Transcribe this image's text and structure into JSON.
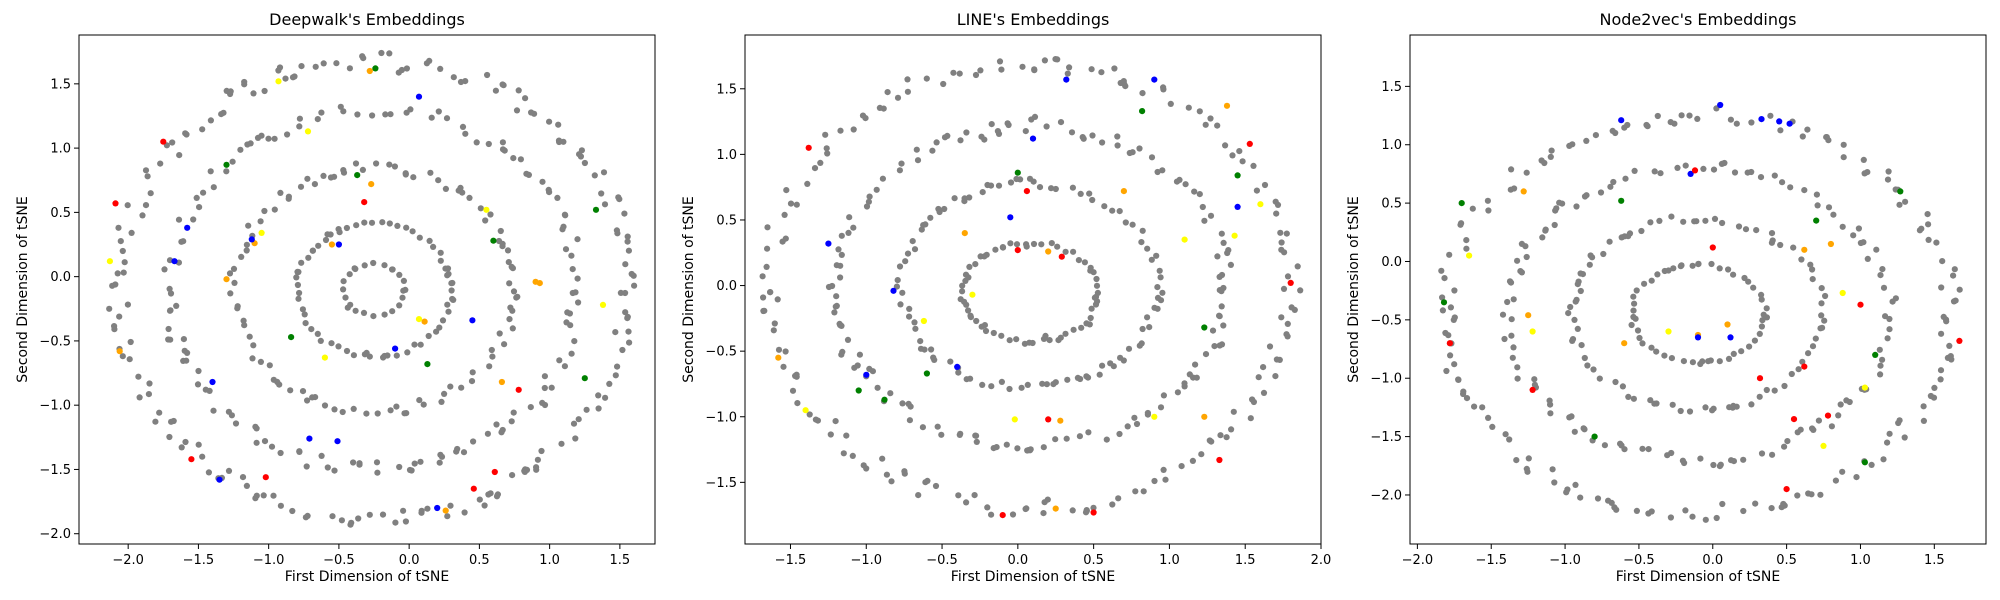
{
  "chart_data": [
    {
      "type": "scatter",
      "title": "Deepwalk's Embeddings",
      "xlabel": "First Dimension of tSNE",
      "ylabel": "Second Dimension of tSNE",
      "xlim": [
        -2.35,
        1.75
      ],
      "ylim": [
        -2.08,
        1.88
      ],
      "xticks": [
        -2.0,
        -1.5,
        -1.0,
        -0.5,
        0.0,
        0.5,
        1.0,
        1.5
      ],
      "xtick_labels": [
        "−2.0",
        "−1.5",
        "−1.0",
        "−0.5",
        "0.0",
        "0.5",
        "1.0",
        "1.5"
      ],
      "yticks": [
        -2.0,
        -1.5,
        -1.0,
        -0.5,
        0.0,
        0.5,
        1.0,
        1.5
      ],
      "ytick_labels": [
        "−2.0",
        "−1.5",
        "−1.0",
        "−0.5",
        "0.0",
        "0.5",
        "1.0",
        "1.5"
      ],
      "grid": false,
      "rings": [
        {
          "cx": -0.25,
          "cy": -0.1,
          "rx": 1.82,
          "ry": 1.78,
          "n": 150,
          "seed": 11
        },
        {
          "cx": -0.25,
          "cy": -0.1,
          "rx": 1.45,
          "ry": 1.4,
          "n": 115,
          "seed": 12
        },
        {
          "cx": -0.25,
          "cy": -0.1,
          "rx": 1.0,
          "ry": 0.95,
          "n": 85,
          "seed": 13
        },
        {
          "cx": -0.25,
          "cy": -0.1,
          "rx": 0.55,
          "ry": 0.52,
          "n": 55,
          "seed": 14
        },
        {
          "cx": -0.25,
          "cy": -0.1,
          "rx": 0.22,
          "ry": 0.2,
          "n": 20,
          "seed": 15
        }
      ],
      "series": [
        {
          "color": "#ffa500",
          "x": [
            -0.28,
            -0.55,
            0.93,
            -2.06,
            0.11,
            -1.1,
            0.66,
            0.26,
            -0.27,
            -1.3,
            0.9
          ],
          "y": [
            1.6,
            0.25,
            -0.05,
            -0.58,
            -0.35,
            0.26,
            -0.82,
            -1.82,
            0.72,
            -0.02,
            -0.04
          ]
        },
        {
          "color": "#ffff00",
          "x": [
            -0.72,
            0.07,
            1.38,
            -2.13,
            -0.93,
            -1.05,
            0.55,
            -0.6
          ],
          "y": [
            1.13,
            -0.33,
            -0.22,
            0.12,
            1.52,
            0.34,
            0.52,
            -0.63
          ]
        },
        {
          "color": "#0000ff",
          "x": [
            0.07,
            -0.5,
            -1.12,
            -1.67,
            -0.71,
            -0.51,
            0.2,
            0.45,
            -1.35,
            -0.1,
            -1.4,
            -1.58
          ],
          "y": [
            1.4,
            0.25,
            0.29,
            0.12,
            -1.26,
            -1.28,
            -1.8,
            -0.34,
            -1.58,
            -0.56,
            -0.82,
            0.38
          ]
        },
        {
          "color": "#ff0000",
          "x": [
            -1.75,
            0.46,
            -1.02,
            -2.09,
            0.78,
            -1.55,
            -0.32,
            0.61
          ],
          "y": [
            1.05,
            -1.65,
            -1.56,
            0.57,
            -0.88,
            -1.42,
            0.58,
            -1.52
          ]
        },
        {
          "color": "#008000",
          "x": [
            -0.24,
            -0.37,
            1.33,
            1.25,
            0.13,
            -0.84,
            0.6,
            -1.3
          ],
          "y": [
            1.62,
            0.79,
            0.52,
            -0.79,
            -0.68,
            -0.47,
            0.28,
            0.87
          ]
        }
      ]
    },
    {
      "type": "scatter",
      "title": "LINE's Embeddings",
      "xlabel": "First Dimension of tSNE",
      "ylabel": "Second Dimension of tSNE",
      "xlim": [
        -1.8,
        2.0
      ],
      "ylim": [
        -1.97,
        1.91
      ],
      "xticks": [
        -1.5,
        -1.0,
        -0.5,
        0.0,
        0.5,
        1.0,
        1.5,
        2.0
      ],
      "xtick_labels": [
        "−1.5",
        "−1.0",
        "−0.5",
        "0.0",
        "0.5",
        "1.0",
        "1.5",
        "2.0"
      ],
      "yticks": [
        -1.5,
        -1.0,
        -0.5,
        0.0,
        0.5,
        1.0,
        1.5
      ],
      "ytick_labels": [
        "−1.5",
        "−1.0",
        "−0.5",
        "0.0",
        "0.5",
        "1.0",
        "1.5"
      ],
      "grid": false,
      "rings": [
        {
          "cx": 0.08,
          "cy": 0.0,
          "rx": 1.72,
          "ry": 1.7,
          "n": 140,
          "seed": 21
        },
        {
          "cx": 0.08,
          "cy": 0.0,
          "rx": 1.3,
          "ry": 1.22,
          "n": 110,
          "seed": 22
        },
        {
          "cx": 0.08,
          "cy": 0.0,
          "rx": 0.85,
          "ry": 0.78,
          "n": 80,
          "seed": 23
        },
        {
          "cx": 0.08,
          "cy": -0.05,
          "rx": 0.45,
          "ry": 0.38,
          "n": 50,
          "seed": 24
        }
      ],
      "series": [
        {
          "color": "#ffa500",
          "x": [
            0.25,
            0.28,
            -0.35,
            0.7,
            1.38,
            0.2,
            1.23,
            -1.58
          ],
          "y": [
            -1.7,
            -1.03,
            0.4,
            0.72,
            1.37,
            0.26,
            -1.0,
            -0.55
          ]
        },
        {
          "color": "#ffff00",
          "x": [
            1.6,
            1.43,
            1.1,
            -0.02,
            -1.4,
            0.9,
            -0.3,
            -0.62
          ],
          "y": [
            0.62,
            0.38,
            0.35,
            -1.02,
            -0.95,
            -1.0,
            -0.07,
            -0.27
          ]
        },
        {
          "color": "#0000ff",
          "x": [
            0.32,
            0.9,
            0.1,
            -1.25,
            -0.4,
            -1.0,
            1.45,
            -0.05,
            -0.82
          ],
          "y": [
            1.57,
            1.57,
            1.12,
            0.32,
            -0.62,
            -0.68,
            0.6,
            0.52,
            -0.04
          ]
        },
        {
          "color": "#ff0000",
          "x": [
            0.06,
            1.53,
            -1.38,
            0.2,
            0.5,
            1.8,
            -0.1,
            0.0,
            1.33,
            0.29
          ],
          "y": [
            0.72,
            1.08,
            1.05,
            -1.02,
            -1.73,
            0.02,
            -1.75,
            0.27,
            -1.33,
            0.22
          ]
        },
        {
          "color": "#008000",
          "x": [
            0.0,
            -1.05,
            0.82,
            -0.88,
            1.23,
            -0.6,
            1.45
          ],
          "y": [
            0.86,
            -0.8,
            1.33,
            -0.87,
            -0.32,
            -0.67,
            0.84
          ]
        }
      ]
    },
    {
      "type": "scatter",
      "title": "Node2vec's Embeddings",
      "xlabel": "First Dimension of tSNE",
      "ylabel": "Second Dimension of tSNE",
      "xlim": [
        -2.05,
        1.85
      ],
      "ylim": [
        -2.42,
        1.94
      ],
      "xticks": [
        -2.0,
        -1.5,
        -1.0,
        -0.5,
        0.0,
        0.5,
        1.0,
        1.5
      ],
      "xtick_labels": [
        "−2.0",
        "−1.5",
        "−1.0",
        "−0.5",
        "0.0",
        "0.5",
        "1.0",
        "1.5"
      ],
      "yticks": [
        -2.0,
        -1.5,
        -1.0,
        -0.5,
        0.0,
        0.5,
        1.0,
        1.5
      ],
      "ytick_labels": [
        "−2.0",
        "−1.5",
        "−1.0",
        "−0.5",
        "0.0",
        "0.5",
        "1.0",
        "1.5"
      ],
      "grid": false,
      "rings": [
        {
          "cx": -0.1,
          "cy": -0.45,
          "rx": 1.72,
          "ry": 1.7,
          "n": 130,
          "seed": 31
        },
        {
          "cx": -0.1,
          "cy": -0.45,
          "rx": 1.3,
          "ry": 1.25,
          "n": 100,
          "seed": 32
        },
        {
          "cx": -0.1,
          "cy": -0.45,
          "rx": 0.85,
          "ry": 0.82,
          "n": 70,
          "seed": 33
        },
        {
          "cx": -0.1,
          "cy": -0.45,
          "rx": 0.45,
          "ry": 0.42,
          "n": 45,
          "seed": 34
        }
      ],
      "series": [
        {
          "color": "#ffa500",
          "x": [
            -1.25,
            0.62,
            -0.1,
            0.1,
            -1.28,
            0.8,
            -0.6
          ],
          "y": [
            -0.46,
            0.1,
            -0.63,
            -0.54,
            0.6,
            0.15,
            -0.7
          ]
        },
        {
          "color": "#ffff00",
          "x": [
            0.75,
            1.03,
            -1.65,
            -0.3,
            0.88,
            -1.22
          ],
          "y": [
            -1.58,
            -1.08,
            0.05,
            -0.6,
            -0.27,
            -0.6
          ]
        },
        {
          "color": "#0000ff",
          "x": [
            -0.62,
            0.33,
            0.45,
            0.52,
            0.05,
            -0.15,
            -0.1,
            0.12
          ],
          "y": [
            1.21,
            1.22,
            1.2,
            1.18,
            1.34,
            0.75,
            -0.65,
            -0.65
          ]
        },
        {
          "color": "#ff0000",
          "x": [
            1.67,
            0.32,
            0.55,
            1.0,
            0.62,
            0.78,
            -1.22,
            -0.12,
            -1.78,
            0.5,
            0.0
          ],
          "y": [
            -0.68,
            -1.0,
            -1.35,
            -0.37,
            -0.9,
            -1.32,
            -1.1,
            0.78,
            -0.7,
            -1.95,
            0.12
          ]
        },
        {
          "color": "#008000",
          "x": [
            -1.82,
            1.1,
            -1.7,
            -0.62,
            0.7,
            1.03,
            -0.8,
            1.27
          ],
          "y": [
            -0.35,
            -0.8,
            0.5,
            0.52,
            0.35,
            -1.72,
            -1.5,
            0.6
          ]
        }
      ]
    }
  ]
}
